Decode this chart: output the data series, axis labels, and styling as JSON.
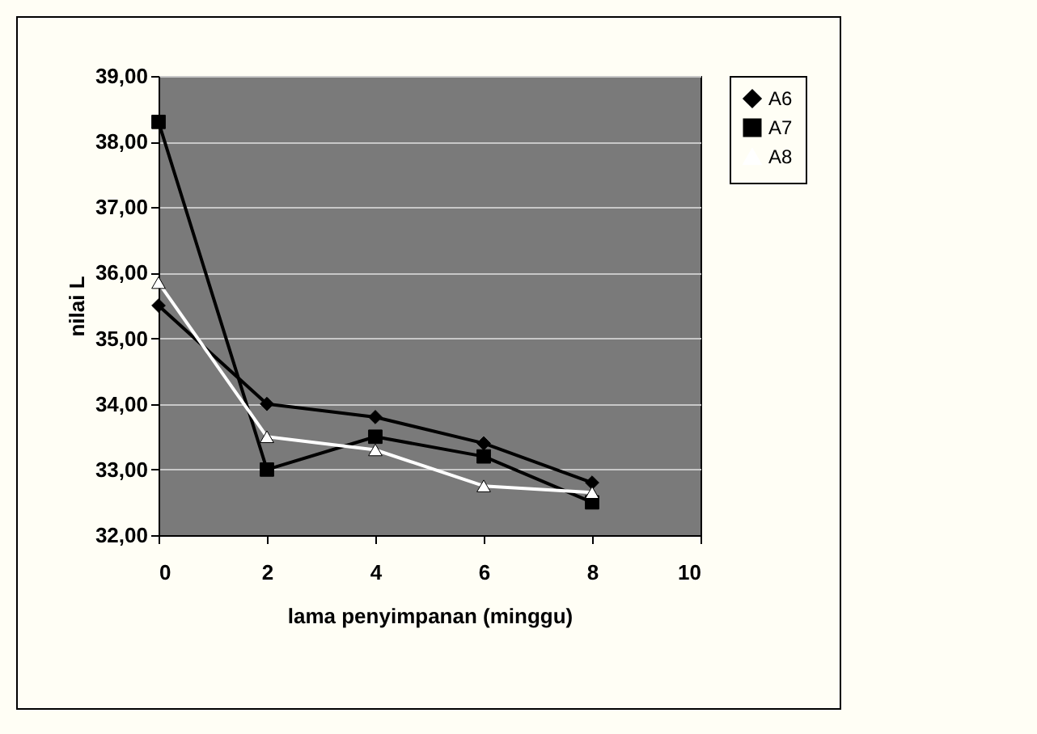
{
  "chart_data": {
    "type": "line",
    "xlabel": "lama penyimpanan (minggu)",
    "ylabel": "nilai L",
    "x": [
      0,
      2,
      4,
      6,
      8
    ],
    "series": [
      {
        "name": "A6",
        "color": "#000000",
        "marker": "diamond",
        "values": [
          35.5,
          34.0,
          33.8,
          33.4,
          32.8
        ]
      },
      {
        "name": "A7",
        "color": "#000000",
        "marker": "square",
        "values": [
          38.3,
          33.0,
          33.5,
          33.2,
          32.5
        ]
      },
      {
        "name": "A8",
        "color": "#ffffff",
        "marker": "triangle",
        "values": [
          35.85,
          33.5,
          33.3,
          32.75,
          32.65
        ]
      }
    ],
    "xlim": [
      0,
      10
    ],
    "xticks": [
      0,
      2,
      4,
      6,
      8,
      10
    ],
    "ylim": [
      32,
      39
    ],
    "yticks": [
      {
        "value": 32,
        "label": "32,00"
      },
      {
        "value": 33,
        "label": "33,00"
      },
      {
        "value": 34,
        "label": "34,00"
      },
      {
        "value": 35,
        "label": "35,00"
      },
      {
        "value": 36,
        "label": "36,00"
      },
      {
        "value": 37,
        "label": "37,00"
      },
      {
        "value": 38,
        "label": "38,00"
      },
      {
        "value": 39,
        "label": "39,00"
      }
    ],
    "grid": "y",
    "legend": "right"
  }
}
